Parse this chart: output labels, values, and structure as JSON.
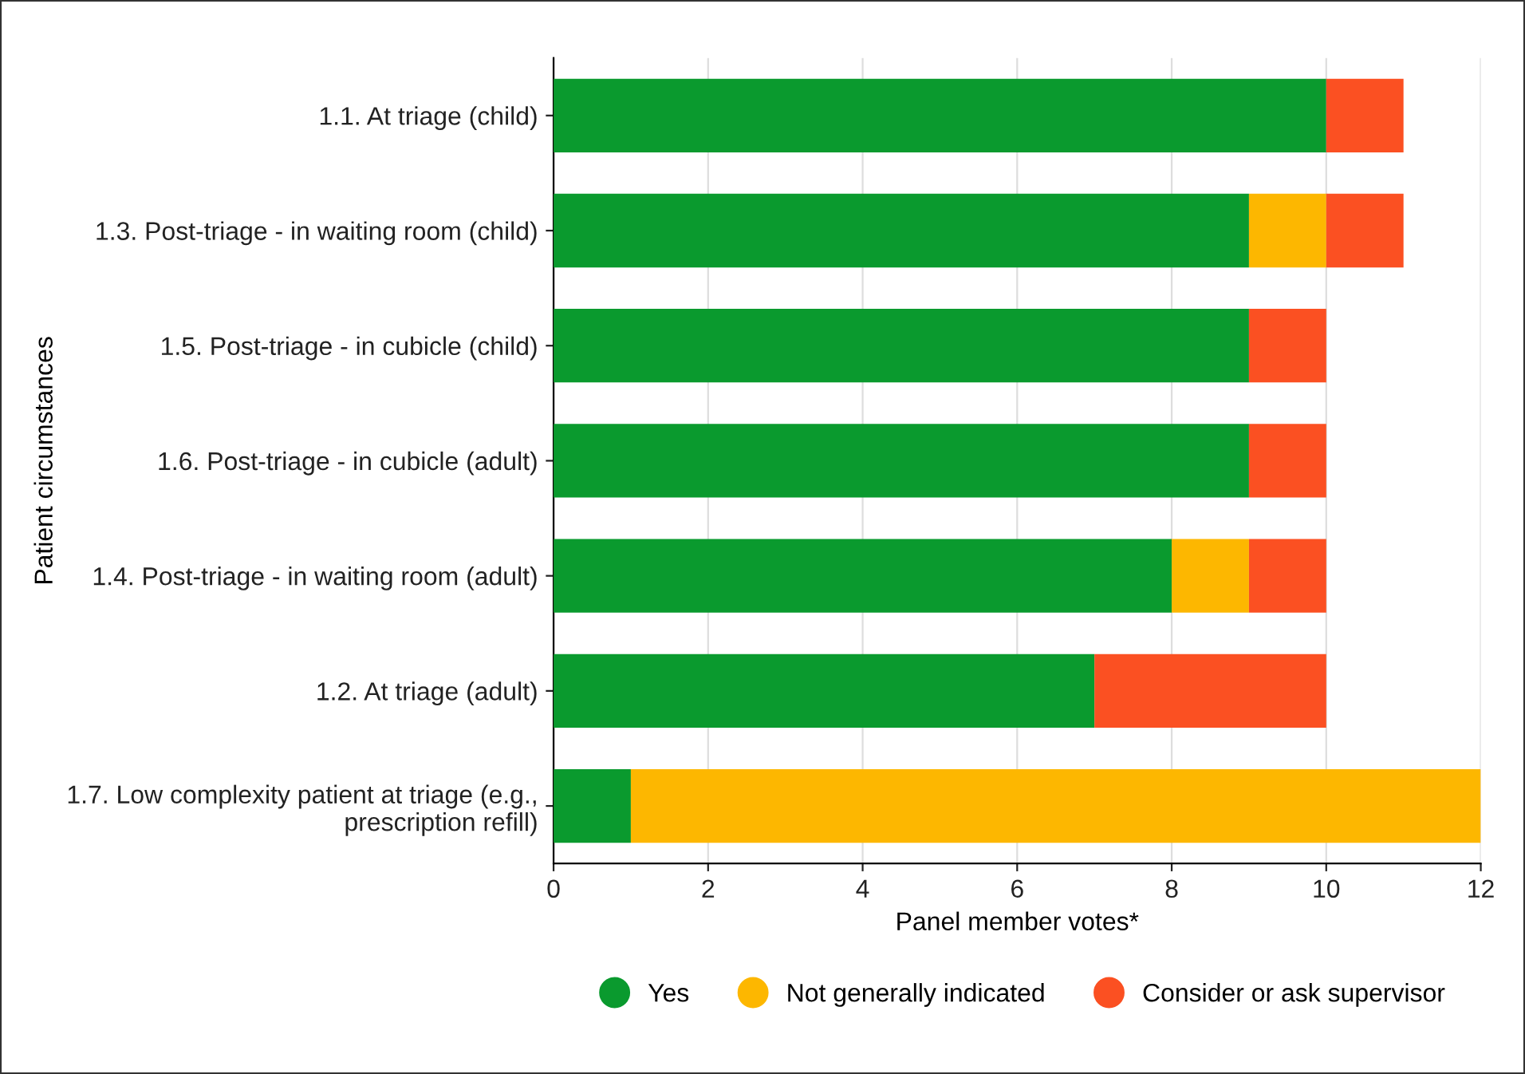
{
  "chart_data": {
    "type": "bar",
    "orientation": "horizontal",
    "stacked": true,
    "xlabel": "Panel member votes*",
    "ylabel": "Patient circumstances",
    "categories": [
      "1.1. At triage (child)",
      "1.3. Post-triage - in waiting room (child)",
      "1.5. Post-triage - in cubicle (child)",
      "1.6. Post-triage - in cubicle (adult)",
      "1.4. Post-triage - in waiting room (adult)",
      "1.2. At triage (adult)",
      "1.7. Low complexity patient at triage (e.g.,\nprescription refill)"
    ],
    "series": [
      {
        "name": "Yes",
        "color": "#0a9a2e",
        "values": [
          10,
          9,
          9,
          9,
          8,
          7,
          1
        ]
      },
      {
        "name": "Not generally indicated",
        "color": "#fdb700",
        "values": [
          0,
          1,
          0,
          0,
          1,
          0,
          11
        ]
      },
      {
        "name": "Consider or ask supervisor",
        "color": "#fb5022",
        "values": [
          1,
          1,
          1,
          1,
          1,
          3,
          0
        ]
      }
    ],
    "xlim": [
      0,
      12
    ],
    "xticks": [
      0,
      2,
      4,
      6,
      8,
      10,
      12
    ],
    "grid": "x",
    "legend": "bottom",
    "marker": "circle"
  }
}
